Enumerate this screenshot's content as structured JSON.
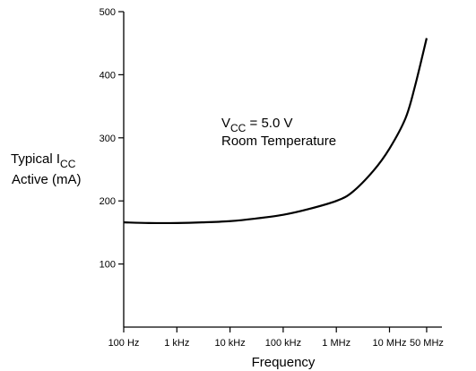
{
  "chart_data": {
    "type": "line",
    "xscale": "log",
    "x_tick_labels": [
      "100 Hz",
      "1 kHz",
      "10 kHz",
      "100 kHz",
      "1 MHz",
      "10 MHz",
      "50 MHz"
    ],
    "x_tick_values_hz": [
      100,
      1000,
      10000,
      100000,
      1000000,
      10000000,
      50000000
    ],
    "xlabel": "Frequency",
    "ylabel_line1": "Typical  I",
    "ylabel_sub": "CC",
    "ylabel_line2": "Active (mA)",
    "ylim": [
      0,
      500
    ],
    "y_ticks": [
      100,
      200,
      300,
      400,
      500
    ],
    "annotation": {
      "line1_prefix": "V",
      "line1_sub": "CC",
      "line1_suffix": " = 5.0 V",
      "line2": "Room Temperature"
    },
    "series": [
      {
        "x": [
          100,
          300,
          1000,
          3000,
          10000,
          30000,
          100000,
          300000,
          1000000,
          2000000,
          5000000,
          10000000,
          20000000,
          30000000,
          50000000
        ],
        "y": [
          166,
          165,
          165,
          166,
          168,
          172,
          178,
          187,
          200,
          214,
          248,
          283,
          331,
          381,
          458
        ]
      }
    ],
    "grid": false,
    "legend": "none"
  }
}
